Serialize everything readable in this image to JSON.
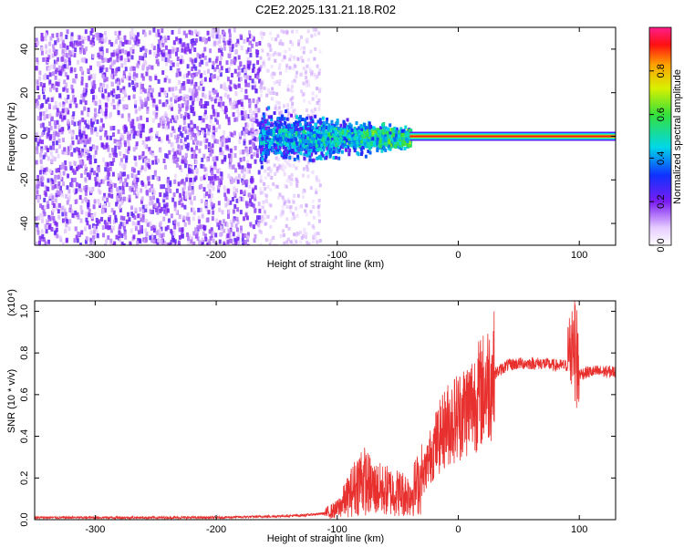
{
  "title": "C2E2.2025.131.21.18.R02",
  "chart_data": [
    {
      "type": "heatmap",
      "xlabel": "Height of straight line (km)",
      "ylabel": "Frequency (Hz)",
      "xlim": [
        -350,
        130
      ],
      "ylim": [
        -50,
        50
      ],
      "x_ticks": [
        -300,
        -200,
        -100,
        0,
        100
      ],
      "y_ticks": [
        -40,
        -20,
        0,
        20,
        40
      ],
      "colorbar": {
        "label": "Normalized spectral amplitude",
        "range": [
          0,
          1
        ],
        "ticks": [
          "0.0",
          "0.2",
          "0.4",
          "0.6",
          "0.8"
        ]
      },
      "regions": [
        {
          "x": [
            -350,
            -165
          ],
          "description_level": 0.15
        },
        {
          "x": [
            -165,
            -40
          ],
          "description_level": 0.45
        },
        {
          "x": [
            -40,
            130
          ],
          "peak_frequency": 0,
          "level": 1.0
        }
      ]
    },
    {
      "type": "line",
      "xlabel": "Height of straight line (km)",
      "ylabel": "SNR (10 * v/v)",
      "y_multiplier": "(x10⁴)",
      "xlim": [
        -350,
        130
      ],
      "ylim": [
        0,
        1.05
      ],
      "x_ticks": [
        -300,
        -200,
        -100,
        0,
        100
      ],
      "y_ticks": [
        "0.0",
        "0.2",
        "0.4",
        "0.6",
        "0.8",
        "1.0"
      ],
      "series": [
        {
          "color": "#e8302e",
          "x": [
            -350,
            -300,
            -250,
            -200,
            -160,
            -130,
            -110,
            -100,
            -90,
            -80,
            -70,
            -60,
            -50,
            -40,
            -30,
            -20,
            -10,
            0,
            10,
            20,
            30,
            40,
            50,
            60,
            70,
            80,
            90,
            95,
            100,
            110,
            120,
            130
          ],
          "y": [
            0.01,
            0.01,
            0.01,
            0.01,
            0.015,
            0.02,
            0.03,
            0.05,
            0.12,
            0.2,
            0.15,
            0.14,
            0.13,
            0.12,
            0.2,
            0.35,
            0.45,
            0.5,
            0.55,
            0.62,
            0.7,
            0.74,
            0.75,
            0.75,
            0.75,
            0.74,
            0.74,
            0.9,
            0.7,
            0.71,
            0.71,
            0.71
          ]
        }
      ]
    }
  ]
}
